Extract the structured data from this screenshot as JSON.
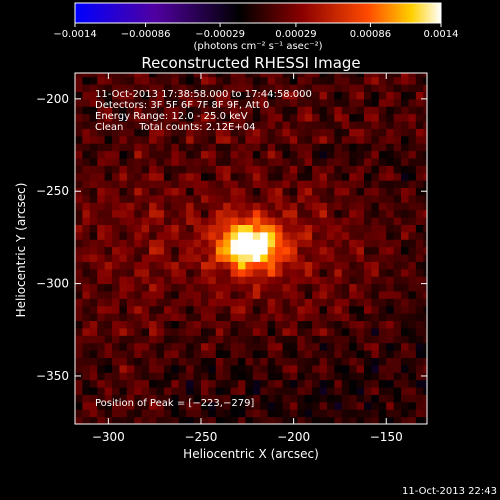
{
  "chart_data": {
    "type": "heatmap",
    "title": "Reconstructed RHESSI Image",
    "xlabel": "Heliocentric X (arcsec)",
    "ylabel": "Heliocentric Y (arcsec)",
    "xlim": [
      -318,
      -128
    ],
    "ylim": [
      -376,
      -186
    ],
    "x_ticks": [
      -300,
      -250,
      -200,
      -150
    ],
    "x_tick_labels": [
      "−300",
      "−250",
      "−200",
      "−150"
    ],
    "y_ticks": [
      -200,
      -250,
      -300,
      -350
    ],
    "y_tick_labels": [
      "−200",
      "−250",
      "−300",
      "−350"
    ],
    "colorbar": {
      "range": [
        -0.0014,
        0.0014
      ],
      "tick_values": [
        -0.0014,
        -0.00086,
        -0.00029,
        0.00029,
        0.00086,
        0.0014
      ],
      "tick_labels": [
        "−0.0014",
        "−0.00086",
        "−0.00029",
        "0.00029",
        "0.00086",
        "0.0014"
      ],
      "units_text": "(photons cm⁻² s⁻¹ asec⁻²)",
      "colors": [
        "#0000ff",
        "#4a00a0",
        "#000000",
        "#800000",
        "#ff4000",
        "#ffd000",
        "#ffffff"
      ]
    },
    "annotations": [
      "11-Oct-2013 17:38:58.000 to 17:44:58.000",
      "Detectors: 3F 5F 6F 7F 8F 9F, Att 0",
      "Energy Range: 12.0 - 25.0 keV",
      "Clean     Total counts: 2.12E+04"
    ],
    "peak_label": "Position of Peak = [−223,−279]",
    "peak_position": [
      -223,
      -279
    ],
    "timestamp": "11-Oct-2013 22:43"
  }
}
